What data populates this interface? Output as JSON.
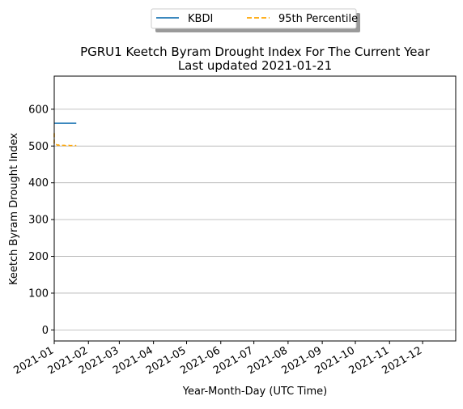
{
  "chart_data": {
    "type": "line",
    "title": "PGRU1 Keetch Byram Drought Index For The Current Year",
    "subtitle": "Last updated 2021-01-21",
    "xlabel": "Year-Month-Day (UTC Time)",
    "ylabel": "Keetch Byram Drought Index",
    "xlim": [
      "2021-01-01",
      "2021-12-31"
    ],
    "ylim": [
      -30,
      690
    ],
    "grid": "horizontal",
    "legend_position": "top-center",
    "x_ticks": [
      "2021-01",
      "2021-02",
      "2021-03",
      "2021-04",
      "2021-05",
      "2021-06",
      "2021-07",
      "2021-08",
      "2021-09",
      "2021-10",
      "2021-11",
      "2021-12"
    ],
    "y_ticks": [
      0,
      100,
      200,
      300,
      400,
      500,
      600
    ],
    "series": [
      {
        "name": "KBDI",
        "color": "#1f77b4",
        "style": "solid",
        "x": [
          "2021-01-01",
          "2021-01-21"
        ],
        "y": [
          562,
          562
        ]
      },
      {
        "name": "95th Percentile",
        "color": "#ffa500",
        "style": "dashed",
        "x": [
          "2021-01-01",
          "2021-01-01",
          "2021-01-02",
          "2021-01-03",
          "2021-01-04",
          "2021-01-05",
          "2021-01-06",
          "2021-01-08",
          "2021-01-10",
          "2021-01-12",
          "2021-01-14",
          "2021-01-16",
          "2021-01-18",
          "2021-01-20",
          "2021-01-21"
        ],
        "y": [
          535,
          507,
          503,
          504,
          502,
          503,
          501,
          502,
          502,
          501,
          502,
          501,
          502,
          501,
          502
        ]
      }
    ]
  }
}
